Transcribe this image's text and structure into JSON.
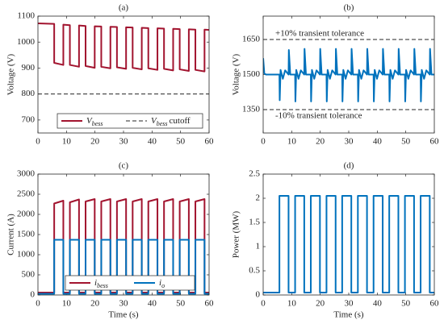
{
  "chart_data": [
    {
      "type": "line",
      "title": "(a)",
      "ylabel": "Voltage (V)",
      "x": [
        0,
        5.7,
        5.7,
        8.9,
        8.9,
        11.2,
        11.2,
        14.4,
        14.4,
        16.7,
        16.7,
        19.9,
        19.9,
        22.2,
        22.2,
        25.4,
        25.4,
        27.7,
        27.7,
        30.9,
        30.9,
        33.2,
        33.2,
        36.4,
        36.4,
        38.7,
        38.7,
        41.9,
        41.9,
        44.2,
        44.2,
        47.4,
        47.4,
        49.7,
        49.7,
        52.9,
        52.9,
        55.2,
        55.2,
        58.4,
        58.4,
        60
      ],
      "series": [
        {
          "name": [
            "V",
            "bess"
          ],
          "color": "#a2142f",
          "values": [
            1072,
            1070,
            920,
            912,
            1067,
            1065,
            912,
            905,
            1064,
            1062,
            908,
            901,
            1061,
            1060,
            905,
            899,
            1059,
            1058,
            903,
            897,
            1057,
            1056,
            901,
            895,
            1055,
            1054,
            899,
            893,
            1053,
            1052,
            897,
            891,
            1051,
            1050,
            895,
            889,
            1049,
            1048,
            893,
            887,
            1048,
            1047
          ]
        }
      ],
      "reference_lines": [
        {
          "name": [
            "V",
            "bess",
            "cutoff"
          ],
          "value": 800,
          "color": "#262626"
        }
      ],
      "xlim": [
        0,
        60
      ],
      "xticks": [
        0,
        10,
        20,
        30,
        40,
        50,
        60
      ],
      "ylim": [
        650,
        1100
      ],
      "yticks": [
        700,
        800,
        900,
        1000,
        1100
      ],
      "legend": "lower center"
    },
    {
      "type": "line",
      "title": "(b)",
      "ylabel": "Voltage (V)",
      "x": [
        0,
        0.4,
        1,
        5.7,
        5.8,
        6.1,
        6.9,
        7.7,
        8.9,
        9.0,
        9.5,
        11.2,
        11.3,
        11.6,
        12.4,
        13.2,
        14.4,
        14.5,
        15.0,
        16.7,
        16.8,
        17.1,
        17.9,
        18.7,
        19.9,
        20.0,
        20.5,
        22.2,
        22.3,
        22.6,
        23.4,
        24.2,
        25.4,
        25.5,
        26.0,
        27.7,
        27.8,
        28.1,
        28.9,
        29.7,
        30.9,
        31.0,
        31.5,
        33.2,
        33.3,
        33.6,
        34.4,
        35.2,
        36.4,
        36.5,
        37.0,
        38.7,
        38.8,
        39.1,
        39.9,
        40.7,
        41.9,
        42.0,
        42.5,
        44.2,
        44.3,
        44.6,
        45.4,
        46.2,
        47.4,
        47.5,
        48.0,
        49.7,
        49.8,
        50.1,
        50.9,
        51.7,
        52.9,
        53.0,
        53.5,
        55.2,
        55.3,
        55.6,
        56.4,
        57.2,
        58.4,
        58.5,
        59.0,
        60
      ],
      "series": [
        {
          "color": "#0072bd",
          "values": [
            1570,
            1505,
            1500,
            1500,
            1390,
            1520,
            1482,
            1518,
            1500,
            1605,
            1500,
            1500,
            1385,
            1520,
            1482,
            1518,
            1500,
            1610,
            1500,
            1500,
            1385,
            1520,
            1482,
            1518,
            1500,
            1610,
            1500,
            1500,
            1385,
            1520,
            1482,
            1518,
            1500,
            1610,
            1500,
            1500,
            1385,
            1520,
            1482,
            1518,
            1500,
            1610,
            1500,
            1500,
            1385,
            1520,
            1482,
            1518,
            1500,
            1610,
            1500,
            1500,
            1385,
            1520,
            1482,
            1518,
            1500,
            1610,
            1500,
            1500,
            1385,
            1520,
            1482,
            1518,
            1500,
            1610,
            1500,
            1500,
            1385,
            1520,
            1482,
            1518,
            1500,
            1610,
            1500,
            1500,
            1385,
            1520,
            1482,
            1518,
            1500,
            1610,
            1500,
            1500
          ]
        }
      ],
      "reference_lines": [
        {
          "label": "+10% transient tolerance",
          "value": 1650,
          "color": "#262626"
        },
        {
          "label": "-10% transient tolerance",
          "value": 1350,
          "color": "#262626"
        }
      ],
      "xlim": [
        0,
        60
      ],
      "xticks": [
        0,
        10,
        20,
        30,
        40,
        50,
        60
      ],
      "ylim": [
        1250,
        1750
      ],
      "yticks": [
        1350,
        1500,
        1650
      ]
    },
    {
      "type": "line",
      "title": "(c)",
      "xlabel": "Time (s)",
      "ylabel": "Current (A)",
      "x": [
        0,
        5.7,
        5.7,
        8.9,
        8.9,
        11.2,
        11.2,
        14.4,
        14.4,
        16.7,
        16.7,
        19.9,
        19.9,
        22.2,
        22.2,
        25.4,
        25.4,
        27.7,
        27.7,
        30.9,
        30.9,
        33.2,
        33.2,
        36.4,
        36.4,
        38.7,
        38.7,
        41.9,
        41.9,
        44.2,
        44.2,
        47.4,
        47.4,
        49.7,
        49.7,
        52.9,
        52.9,
        55.2,
        55.2,
        58.4,
        58.4,
        60
      ],
      "series": [
        {
          "name": [
            "i",
            "bess"
          ],
          "color": "#a2142f",
          "values": [
            60,
            60,
            2270,
            2340,
            60,
            60,
            2300,
            2370,
            60,
            60,
            2320,
            2380,
            60,
            60,
            2320,
            2380,
            60,
            60,
            2320,
            2380,
            60,
            60,
            2320,
            2380,
            60,
            60,
            2320,
            2380,
            60,
            60,
            2320,
            2380,
            60,
            60,
            2320,
            2380,
            60,
            60,
            2320,
            2380,
            60,
            60
          ]
        },
        {
          "name": [
            "i",
            "o"
          ],
          "color": "#0072bd",
          "values": [
            30,
            30,
            1370,
            1370,
            30,
            30,
            1370,
            1370,
            30,
            30,
            1370,
            1370,
            30,
            30,
            1370,
            1370,
            30,
            30,
            1370,
            1370,
            30,
            30,
            1370,
            1370,
            30,
            30,
            1370,
            1370,
            30,
            30,
            1370,
            1370,
            30,
            30,
            1370,
            1370,
            30,
            30,
            1370,
            1370,
            30,
            30
          ]
        }
      ],
      "xlim": [
        0,
        60
      ],
      "xticks": [
        0,
        10,
        20,
        30,
        40,
        50,
        60
      ],
      "ylim": [
        0,
        3000
      ],
      "yticks": [
        0,
        500,
        1000,
        1500,
        2000,
        2500,
        3000
      ],
      "legend": "lower center"
    },
    {
      "type": "line",
      "title": "(d)",
      "xlabel": "Time (s)",
      "ylabel": "Power (MW)",
      "x": [
        0,
        5.7,
        5.7,
        8.9,
        8.9,
        11.2,
        11.2,
        14.4,
        14.4,
        16.7,
        16.7,
        19.9,
        19.9,
        22.2,
        22.2,
        25.4,
        25.4,
        27.7,
        27.7,
        30.9,
        30.9,
        33.2,
        33.2,
        36.4,
        36.4,
        38.7,
        38.7,
        41.9,
        41.9,
        44.2,
        44.2,
        47.4,
        47.4,
        49.7,
        49.7,
        52.9,
        52.9,
        55.2,
        55.2,
        58.4,
        58.4,
        60
      ],
      "series": [
        {
          "color": "#0072bd",
          "values": [
            0.05,
            0.05,
            2.05,
            2.05,
            0.05,
            0.05,
            2.05,
            2.05,
            0.05,
            0.05,
            2.05,
            2.05,
            0.05,
            0.05,
            2.05,
            2.05,
            0.05,
            0.05,
            2.05,
            2.05,
            0.05,
            0.05,
            2.05,
            2.05,
            0.05,
            0.05,
            2.05,
            2.05,
            0.05,
            0.05,
            2.05,
            2.05,
            0.05,
            0.05,
            2.05,
            2.05,
            0.05,
            0.05,
            2.05,
            2.05,
            0.05,
            0.05
          ]
        }
      ],
      "xlim": [
        0,
        60
      ],
      "xticks": [
        0,
        10,
        20,
        30,
        40,
        50,
        60
      ],
      "ylim": [
        0,
        2.5
      ],
      "yticks": [
        0,
        0.5,
        1,
        1.5,
        2,
        2.5
      ]
    }
  ]
}
